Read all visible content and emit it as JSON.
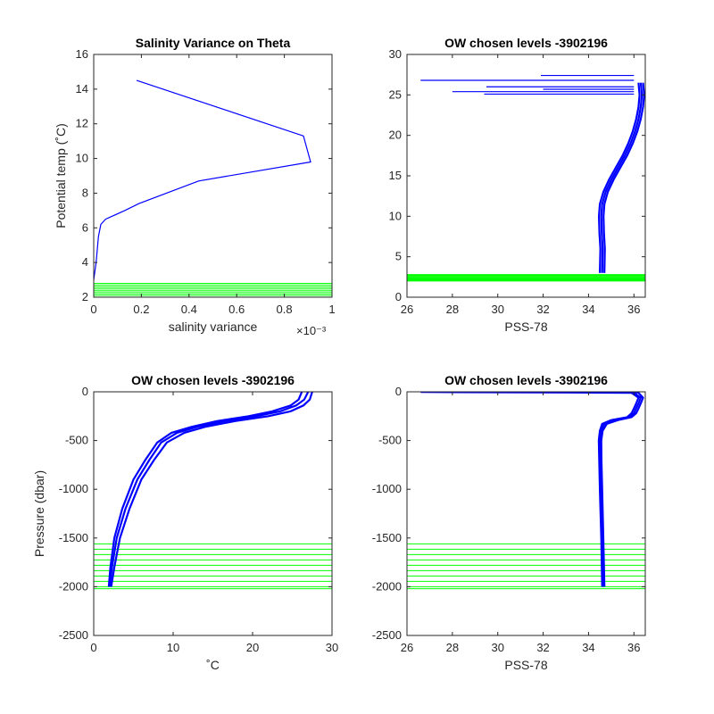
{
  "chart_data": [
    {
      "type": "line",
      "title": "Salinity Variance on Theta",
      "xlabel": "salinity variance",
      "xexp": "×10⁻³",
      "ylabel": "Potential temp (˚C)",
      "xlim": [
        0,
        0.001
      ],
      "ylim": [
        2,
        16
      ],
      "xticks": [
        0,
        0.0002,
        0.0004,
        0.0006,
        0.0008,
        0.001
      ],
      "xticklabels": [
        "0",
        "0.2",
        "0.4",
        "0.6",
        "0.8",
        "1"
      ],
      "yticks": [
        2,
        4,
        6,
        8,
        10,
        12,
        14,
        16
      ],
      "yticklabels": [
        "2",
        "4",
        "6",
        "8",
        "10",
        "12",
        "14",
        "16"
      ],
      "series": [
        {
          "color": "#0000ff",
          "x": [
            0.0,
            1e-05,
            2e-05,
            3e-05,
            5e-05,
            0.00013,
            0.00019,
            0.00044,
            0.00091,
            0.00088,
            0.00018
          ],
          "y": [
            3.0,
            4.0,
            5.5,
            6.2,
            6.5,
            7.0,
            7.4,
            8.7,
            9.8,
            11.3,
            14.5
          ]
        }
      ],
      "hlines": {
        "color": "#00ff00",
        "y": [
          2.0,
          2.1,
          2.2,
          2.3,
          2.4,
          2.5,
          2.6,
          2.7,
          2.8
        ]
      }
    },
    {
      "type": "line",
      "title": "OW chosen levels -3902196",
      "xlabel": "PSS-78",
      "ylabel": "",
      "xlim": [
        26,
        36.5
      ],
      "ylim": [
        0,
        30
      ],
      "xticks": [
        26,
        28,
        30,
        32,
        34,
        36
      ],
      "xticklabels": [
        "26",
        "28",
        "30",
        "32",
        "34",
        "36"
      ],
      "yticks": [
        0,
        5,
        10,
        15,
        20,
        25,
        30
      ],
      "yticklabels": [
        "0",
        "5",
        "10",
        "15",
        "20",
        "25",
        "30"
      ],
      "series": [
        {
          "color": "#0000ff",
          "x": [
            34.6,
            34.62,
            34.58,
            34.56,
            34.6,
            34.75,
            35.0,
            35.3,
            35.6,
            35.85,
            36.05,
            36.2,
            36.3,
            36.35,
            36.3
          ],
          "y": [
            3.0,
            6.0,
            8.0,
            10.0,
            11.5,
            13.0,
            14.5,
            16.0,
            17.5,
            19.0,
            20.5,
            22.0,
            23.5,
            25.0,
            26.5
          ]
        },
        {
          "color": "#0000ff",
          "x": [
            34.5,
            34.52,
            34.48,
            34.46,
            34.5,
            34.65,
            34.9,
            35.2,
            35.5,
            35.75,
            35.95,
            36.1,
            36.2,
            36.25,
            36.2
          ],
          "y": [
            3.0,
            6.0,
            8.0,
            10.0,
            11.5,
            13.0,
            14.5,
            16.0,
            17.5,
            19.0,
            20.5,
            22.0,
            23.5,
            25.0,
            26.5
          ]
        },
        {
          "color": "#0000ff",
          "x": [
            34.7,
            34.72,
            34.68,
            34.66,
            34.7,
            34.85,
            35.1,
            35.4,
            35.7,
            35.95,
            36.15,
            36.3,
            36.4,
            36.45,
            36.4
          ],
          "y": [
            3.0,
            6.0,
            8.0,
            10.0,
            11.5,
            13.0,
            14.5,
            16.0,
            17.5,
            19.0,
            20.5,
            22.0,
            23.5,
            25.0,
            26.5
          ]
        }
      ],
      "spikes": {
        "color": "#0000ff",
        "items": [
          {
            "x": 26.6,
            "y": 26.8
          },
          {
            "x": 31.9,
            "y": 27.4
          },
          {
            "x": 29.5,
            "y": 26.0
          },
          {
            "x": 28.0,
            "y": 25.4
          },
          {
            "x": 29.4,
            "y": 25.1
          },
          {
            "x": 32.0,
            "y": 25.7
          }
        ]
      },
      "hlines": {
        "color": "#00ff00",
        "y": [
          2.0,
          2.1,
          2.2,
          2.3,
          2.4,
          2.5,
          2.6,
          2.7,
          2.8
        ]
      }
    },
    {
      "type": "line",
      "title": "OW chosen levels -3902196",
      "xlabel": "˚C",
      "ylabel": "Pressure (dbar)",
      "xlim": [
        0,
        30
      ],
      "ylim": [
        -2500,
        0
      ],
      "xticks": [
        0,
        10,
        20,
        30
      ],
      "xticklabels": [
        "0",
        "10",
        "20",
        "30"
      ],
      "yticks": [
        -2500,
        -2000,
        -1500,
        -1000,
        -500,
        0
      ],
      "yticklabels": [
        "-2500",
        "-2000",
        "-1500",
        "-1000",
        "-500",
        "0"
      ],
      "series": [
        {
          "color": "#0000ff",
          "x": [
            2.0,
            2.3,
            2.9,
            4.0,
            5.5,
            7.0,
            8.5,
            10.5,
            13.0,
            16.5,
            20.5,
            23.5,
            25.5,
            26.5,
            27.0
          ],
          "y": [
            -2000,
            -1800,
            -1500,
            -1200,
            -900,
            -700,
            -520,
            -420,
            -360,
            -300,
            -250,
            -200,
            -140,
            -80,
            0
          ]
        },
        {
          "color": "#0000ff",
          "x": [
            2.2,
            2.6,
            3.3,
            4.5,
            6.0,
            7.6,
            9.2,
            11.4,
            14.0,
            17.8,
            22.0,
            24.8,
            26.4,
            27.2,
            27.5
          ],
          "y": [
            -2000,
            -1800,
            -1500,
            -1200,
            -900,
            -700,
            -520,
            -420,
            -360,
            -300,
            -250,
            -200,
            -140,
            -80,
            0
          ]
        },
        {
          "color": "#0000ff",
          "x": [
            1.9,
            2.1,
            2.6,
            3.6,
            5.0,
            6.5,
            8.0,
            9.8,
            12.3,
            15.5,
            19.5,
            22.5,
            24.8,
            25.8,
            26.2
          ],
          "y": [
            -2000,
            -1800,
            -1500,
            -1200,
            -900,
            -700,
            -520,
            -420,
            -360,
            -300,
            -250,
            -200,
            -140,
            -80,
            0
          ]
        }
      ],
      "hlines": {
        "color": "#00ff00",
        "y": [
          -1560,
          -1615,
          -1670,
          -1725,
          -1780,
          -1835,
          -1890,
          -1945,
          -2000,
          -2020
        ]
      }
    },
    {
      "type": "line",
      "title": "OW chosen levels -3902196",
      "xlabel": "PSS-78",
      "ylabel": "",
      "xlim": [
        26,
        36.5
      ],
      "ylim": [
        -2500,
        0
      ],
      "xticks": [
        26,
        28,
        30,
        32,
        34,
        36
      ],
      "xticklabels": [
        "26",
        "28",
        "30",
        "32",
        "34",
        "36"
      ],
      "yticks": [
        -2500,
        -2000,
        -1500,
        -1000,
        -500,
        0
      ],
      "yticklabels": [
        "-2500",
        "-2000",
        "-1500",
        "-1000",
        "-500",
        "0"
      ],
      "series": [
        {
          "color": "#0000ff",
          "x": [
            34.65,
            34.6,
            34.55,
            34.52,
            34.5,
            34.55,
            34.7,
            35.2,
            35.8,
            36.0,
            36.1,
            36.2,
            36.3,
            36.0,
            26.6
          ],
          "y": [
            -2000,
            -1500,
            -1000,
            -700,
            -500,
            -400,
            -330,
            -290,
            -260,
            -220,
            -170,
            -120,
            -60,
            -10,
            -2
          ]
        },
        {
          "color": "#0000ff",
          "x": [
            34.7,
            34.65,
            34.6,
            34.57,
            34.56,
            34.62,
            34.8,
            35.3,
            35.9,
            36.1,
            36.2,
            36.3,
            36.4,
            36.2,
            36.0
          ],
          "y": [
            -2000,
            -1500,
            -1000,
            -700,
            -500,
            -400,
            -330,
            -290,
            -260,
            -220,
            -170,
            -120,
            -60,
            -10,
            0
          ]
        },
        {
          "color": "#0000ff",
          "x": [
            34.6,
            34.56,
            34.5,
            34.47,
            34.45,
            34.5,
            34.6,
            35.0,
            35.7,
            35.9,
            36.0,
            36.1,
            36.2,
            35.9,
            35.8
          ],
          "y": [
            -2000,
            -1500,
            -1000,
            -700,
            -500,
            -400,
            -330,
            -290,
            -260,
            -220,
            -170,
            -120,
            -60,
            -10,
            0
          ]
        }
      ],
      "hlines": {
        "color": "#00ff00",
        "y": [
          -1560,
          -1615,
          -1670,
          -1725,
          -1780,
          -1835,
          -1890,
          -1945,
          -2000,
          -2020
        ]
      }
    }
  ]
}
